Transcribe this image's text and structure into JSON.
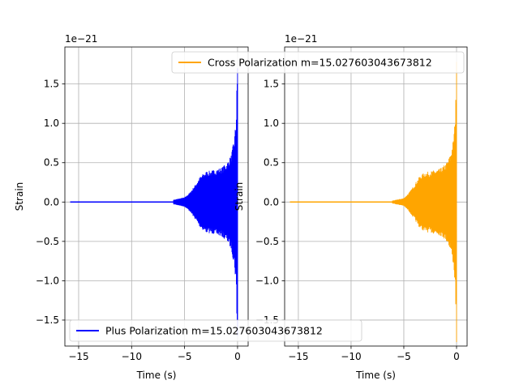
{
  "chart_data": [
    {
      "type": "line",
      "xlabel": "Time (s)",
      "ylabel": "Strain",
      "offset_label": "1e−21",
      "xlim": [
        -16.3,
        1.0
      ],
      "ylim": [
        -1.83,
        1.97
      ],
      "xticks": [
        -15,
        -10,
        -5,
        0
      ],
      "xtick_labels": [
        "−15",
        "−10",
        "−5",
        "0"
      ],
      "yticks": [
        -1.5,
        -1.0,
        -0.5,
        0.0,
        0.5,
        1.0,
        1.5
      ],
      "ytick_labels": [
        "−1.5",
        "−1.0",
        "−0.5",
        "0.0",
        "0.5",
        "1.0",
        "1.5"
      ],
      "grid": true,
      "legend_loc": "lower-left",
      "series": [
        {
          "name": "Plus Polarization m=15.027603043673812",
          "color": "#0000ff",
          "x_range": [
            -15.8,
            0.0
          ],
          "envelope_points": [
            [
              -15.8,
              0.02
            ],
            [
              -8.0,
              0.02
            ],
            [
              -6.0,
              0.03
            ],
            [
              -5.0,
              0.06
            ],
            [
              -4.5,
              0.12
            ],
            [
              -4.0,
              0.22
            ],
            [
              -3.5,
              0.33
            ],
            [
              -3.0,
              0.39
            ],
            [
              -2.5,
              0.4
            ],
            [
              -2.0,
              0.42
            ],
            [
              -1.5,
              0.44
            ],
            [
              -1.0,
              0.5
            ],
            [
              -0.6,
              0.6
            ],
            [
              -0.3,
              0.82
            ],
            [
              -0.12,
              1.1
            ],
            [
              -0.05,
              1.6
            ],
            [
              0.0,
              1.7
            ]
          ]
        }
      ]
    },
    {
      "type": "line",
      "xlabel": "Time (s)",
      "ylabel": "Strain",
      "offset_label": "1e−21",
      "xlim": [
        -16.3,
        1.0
      ],
      "ylim": [
        -1.83,
        1.97
      ],
      "xticks": [
        -15,
        -10,
        -5,
        0
      ],
      "xtick_labels": [
        "−15",
        "−10",
        "−5",
        "0"
      ],
      "yticks": [
        -1.5,
        -1.0,
        -0.5,
        0.0,
        0.5,
        1.0,
        1.5
      ],
      "ytick_labels": [
        "−1.5",
        "−1.0",
        "−0.5",
        "0.0",
        "0.5",
        "1.0",
        "1.5"
      ],
      "grid": true,
      "legend_loc": "upper-right",
      "series": [
        {
          "name": "Cross Polarization m=15.027603043673812",
          "color": "#ffa500",
          "x_range": [
            -15.8,
            0.0
          ],
          "envelope_points": [
            [
              -15.8,
              0.01
            ],
            [
              -8.0,
              0.01
            ],
            [
              -6.0,
              0.02
            ],
            [
              -5.0,
              0.05
            ],
            [
              -4.5,
              0.12
            ],
            [
              -4.0,
              0.22
            ],
            [
              -3.5,
              0.33
            ],
            [
              -3.0,
              0.38
            ],
            [
              -2.5,
              0.39
            ],
            [
              -2.0,
              0.41
            ],
            [
              -1.5,
              0.43
            ],
            [
              -1.0,
              0.49
            ],
            [
              -0.6,
              0.6
            ],
            [
              -0.3,
              0.8
            ],
            [
              -0.12,
              1.1
            ],
            [
              -0.05,
              1.45
            ],
            [
              0.0,
              1.78
            ]
          ]
        }
      ]
    }
  ]
}
